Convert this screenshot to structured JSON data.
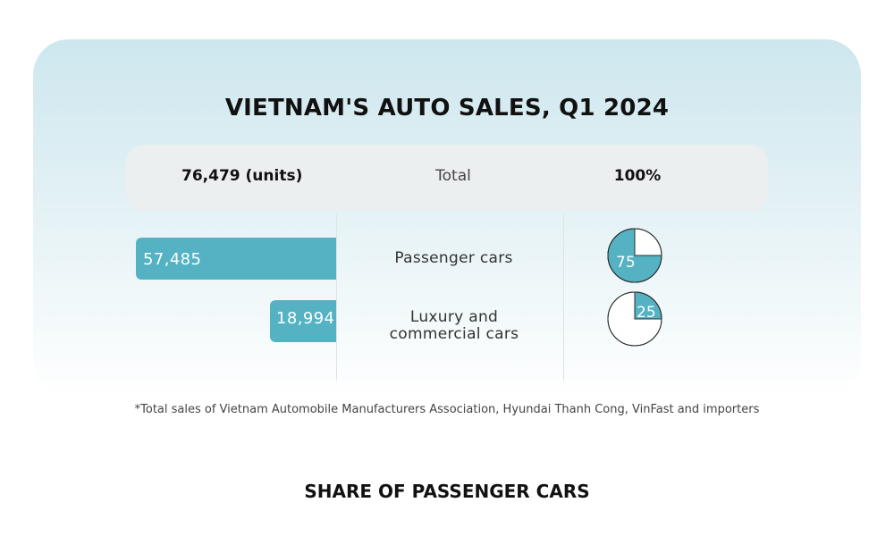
{
  "chart_data": {
    "type": "bar",
    "title": "VIETNAM'S AUTO SALES, Q1 2024",
    "total": {
      "units_label": "76,479 (units)",
      "label": "Total",
      "share_label": "100%"
    },
    "categories": [
      "Passenger cars",
      "Luxury and commercial cars"
    ],
    "values": [
      57485,
      18994
    ],
    "value_labels": [
      "57,485",
      "18,994"
    ],
    "shares": [
      75,
      25
    ],
    "share_labels": [
      "75",
      "25"
    ],
    "bar_color": "#55b2c3",
    "footnote": "*Total sales of Vietnam Automobile Manufacturers Association, Hyundai Thanh Cong, VinFast and importers",
    "subtitle": "SHARE OF PASSENGER CARS"
  }
}
